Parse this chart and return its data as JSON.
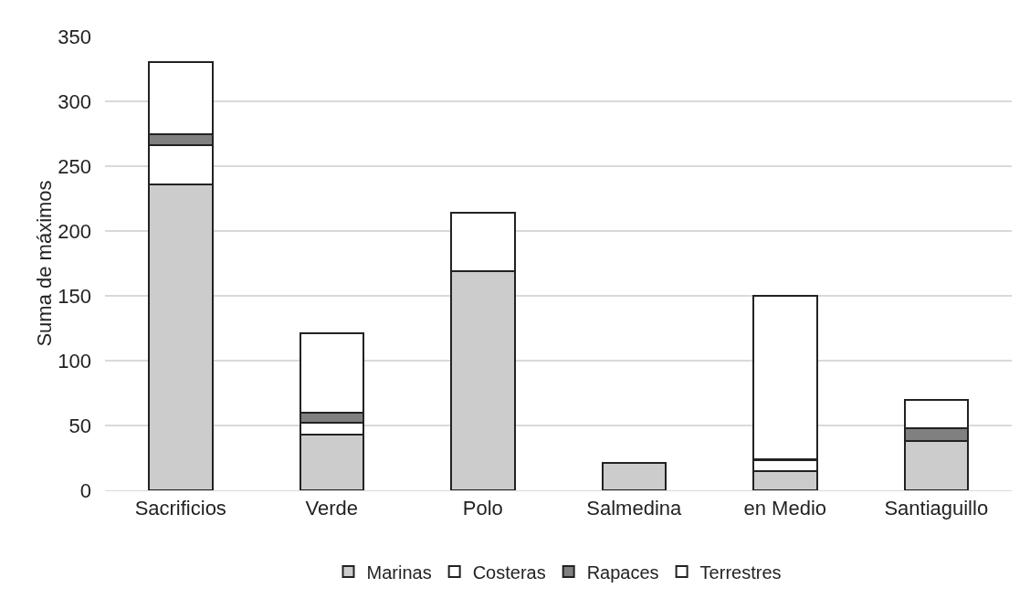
{
  "chart_data": {
    "type": "bar",
    "stacked": true,
    "ylabel": "Suma de máximos",
    "categories": [
      "Sacrificios",
      "Verde",
      "Polo",
      "Salmedina",
      "en Medio",
      "Santiaguillo"
    ],
    "series": [
      {
        "name": "Marinas",
        "color": "#cccccc",
        "values": [
          236,
          43,
          169,
          21,
          15,
          38
        ]
      },
      {
        "name": "Costeras",
        "color": "#ffffff",
        "values": [
          30,
          9,
          45,
          null,
          8,
          null
        ]
      },
      {
        "name": "Rapaces",
        "color": "#808080",
        "values": [
          9,
          8,
          null,
          null,
          1,
          10
        ]
      },
      {
        "name": "Terrestres",
        "color": "#ffffff",
        "values": [
          55,
          61,
          null,
          null,
          126,
          22
        ]
      }
    ],
    "ylim": [
      0,
      350
    ],
    "yticks": [
      0,
      50,
      100,
      150,
      200,
      250,
      300,
      350
    ],
    "grid": "y",
    "legend": "bottom"
  }
}
